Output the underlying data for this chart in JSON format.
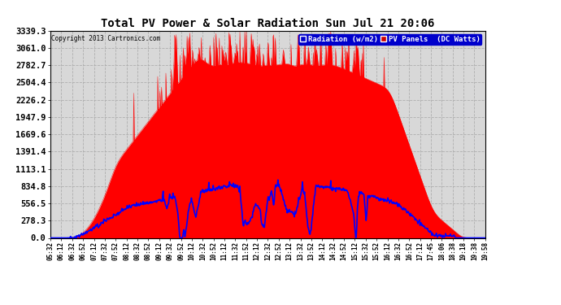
{
  "title": "Total PV Power & Solar Radiation Sun Jul 21 20:06",
  "copyright": "Copyright 2013 Cartronics.com",
  "legend_radiation": "Radiation (w/m2)",
  "legend_pv": "PV Panels  (DC Watts)",
  "yticks": [
    0.0,
    278.3,
    556.5,
    834.8,
    1113.1,
    1391.4,
    1669.6,
    1947.9,
    2226.2,
    2504.4,
    2782.7,
    3061.0,
    3339.3
  ],
  "ymax": 3339.3,
  "bg_color": "#ffffff",
  "plot_bg_color": "#d8d8d8",
  "grid_color": "#aaaaaa",
  "title_color": "#000000",
  "axis_color": "#000000",
  "tick_color": "#000000",
  "red_color": "#ff0000",
  "blue_color": "#0000ff",
  "legend_rad_bg": "#0000cc",
  "legend_pv_bg": "#cc0000",
  "xtick_labels": [
    "05:32",
    "06:12",
    "06:32",
    "06:52",
    "07:12",
    "07:32",
    "07:52",
    "08:12",
    "08:32",
    "08:52",
    "09:12",
    "09:32",
    "09:52",
    "10:12",
    "10:32",
    "10:52",
    "11:12",
    "11:32",
    "11:52",
    "12:12",
    "12:32",
    "12:52",
    "13:12",
    "13:32",
    "13:52",
    "14:12",
    "14:32",
    "14:52",
    "15:12",
    "15:32",
    "15:52",
    "16:12",
    "16:32",
    "16:52",
    "17:12",
    "17:45",
    "18:06",
    "18:38",
    "19:18",
    "19:38",
    "19:58"
  ]
}
